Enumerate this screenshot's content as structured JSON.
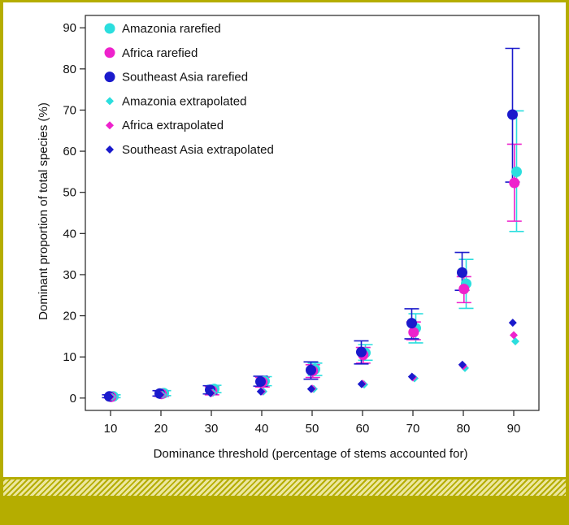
{
  "chart_data": {
    "type": "scatter",
    "title": "",
    "xlabel": "Dominance threshold (percentage of stems accounted for)",
    "ylabel": "Dominant proportion of total species (%)",
    "xlim": [
      5,
      95
    ],
    "ylim": [
      -3,
      93
    ],
    "x_ticks": [
      10,
      20,
      30,
      40,
      50,
      60,
      70,
      80,
      90
    ],
    "y_ticks": [
      0,
      10,
      20,
      30,
      40,
      50,
      60,
      70,
      80,
      90
    ],
    "grid": false,
    "legend_position": "top-left",
    "series": [
      {
        "name": "Amazonia rarefied",
        "marker": "circle",
        "color": "#2bdede",
        "x": [
          10,
          20,
          30,
          40,
          50,
          60,
          70,
          80,
          90
        ],
        "y": [
          0.4,
          1.2,
          2.2,
          4.1,
          7.0,
          11.0,
          17.0,
          27.8,
          55.0
        ],
        "err_low": [
          0.1,
          0.6,
          1.3,
          3.0,
          5.5,
          9.2,
          13.4,
          21.8,
          40.5
        ],
        "err_high": [
          0.8,
          1.8,
          3.1,
          5.2,
          8.5,
          13.0,
          20.5,
          33.7,
          69.8
        ]
      },
      {
        "name": "Africa rarefied",
        "marker": "circle",
        "color": "#ee22cc",
        "x": [
          10,
          20,
          30,
          40,
          50,
          60,
          70,
          80,
          90
        ],
        "y": [
          0.3,
          1.0,
          1.8,
          3.9,
          6.6,
          10.5,
          16.0,
          26.5,
          52.3
        ],
        "err_low": [
          0.0,
          0.4,
          0.8,
          2.7,
          5.0,
          8.5,
          14.2,
          23.2,
          43.0
        ],
        "err_high": [
          0.7,
          1.7,
          2.8,
          5.0,
          8.1,
          12.3,
          18.5,
          29.5,
          61.7
        ]
      },
      {
        "name": "Southeast Asia rarefied",
        "marker": "circle",
        "color": "#1a1acc",
        "x": [
          10,
          20,
          30,
          40,
          50,
          60,
          70,
          80,
          90
        ],
        "y": [
          0.4,
          1.1,
          2.0,
          4.0,
          6.8,
          11.2,
          18.2,
          30.5,
          68.9
        ],
        "err_low": [
          0.1,
          0.5,
          1.0,
          2.9,
          4.6,
          8.3,
          14.4,
          26.2,
          52.5
        ],
        "err_high": [
          0.8,
          1.8,
          3.0,
          5.3,
          8.8,
          13.9,
          21.7,
          35.4,
          85.0
        ]
      },
      {
        "name": "Amazonia extrapolated",
        "marker": "diamond",
        "color": "#2bdede",
        "x": [
          10,
          20,
          30,
          40,
          50,
          60,
          70,
          80,
          90
        ],
        "y": [
          0.3,
          0.8,
          1.3,
          1.6,
          2.2,
          3.3,
          4.8,
          7.3,
          13.8
        ]
      },
      {
        "name": "Africa extrapolated",
        "marker": "diamond",
        "color": "#ee22cc",
        "x": [
          10,
          20,
          30,
          40,
          50,
          60,
          70,
          80,
          90
        ],
        "y": [
          0.3,
          0.8,
          1.2,
          1.6,
          2.3,
          3.5,
          5.0,
          7.8,
          15.3
        ]
      },
      {
        "name": "Southeast Asia extrapolated",
        "marker": "diamond",
        "color": "#1a1acc",
        "x": [
          10,
          20,
          30,
          40,
          50,
          60,
          70,
          80,
          90
        ],
        "y": [
          0.3,
          0.8,
          1.2,
          1.6,
          2.2,
          3.4,
          5.2,
          8.1,
          18.3
        ]
      }
    ]
  }
}
